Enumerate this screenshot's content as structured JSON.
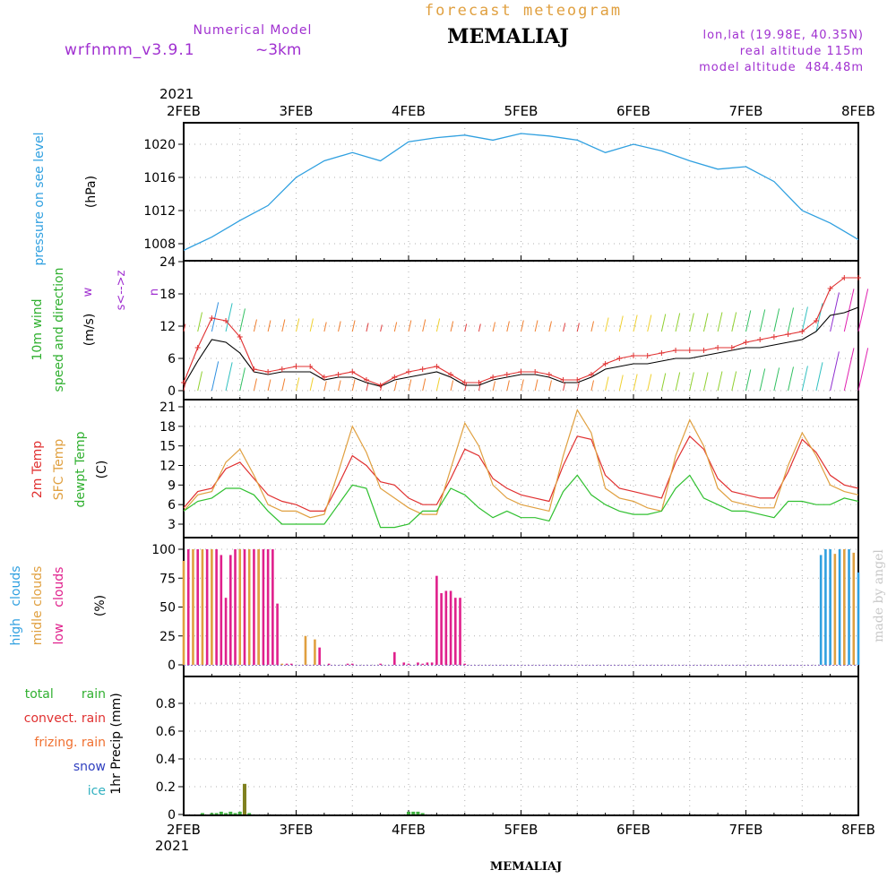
{
  "header": {
    "subtitle": "forecast meteogram",
    "station": "MEMALIAJ",
    "model_label": "Numerical Model",
    "model_name": "wrfnmm_v3.9.1",
    "resolution": "~3km",
    "lonlat": "lon,lat (19.98E, 40.35N)",
    "real_altitude": "real altitude 115m",
    "model_altitude": "model altitude  484.48m",
    "credit": "made by angel",
    "bottom_title": "MEMALIAJ",
    "colors": {
      "subtitle": "#e0a040",
      "model": "#a030d0",
      "station": "#000000",
      "credit": "#c0c0c0"
    }
  },
  "axis": {
    "year": "2021",
    "days": [
      "2FEB",
      "3FEB",
      "4FEB",
      "5FEB",
      "6FEB",
      "7FEB",
      "8FEB"
    ],
    "hours_range": [
      0,
      144
    ]
  },
  "panels": {
    "pressure": {
      "label": "pressure on see level",
      "unit": "(hPa)",
      "yticks": [
        "1008",
        "1012",
        "1016",
        "1020"
      ],
      "color": "#30a0e0"
    },
    "wind": {
      "label1": "10m wind",
      "label2": "speed and direction",
      "unit": "(m/s)",
      "dir_label": "w",
      "dir_arrows": "s<-->z",
      "dir_end": "n",
      "yticks": [
        "0",
        "6",
        "12",
        "18",
        "24"
      ]
    },
    "temp": {
      "label1": "2m Temp",
      "label2": "SFC Temp",
      "label3": "dewpt Temp",
      "unit": "(C)",
      "yticks": [
        "3",
        "6",
        "9",
        "12",
        "15",
        "18",
        "21"
      ]
    },
    "clouds": {
      "label_high": "high   clouds",
      "label_mid": "midle clouds",
      "label_low": "low    clouds",
      "unit": "(%)",
      "yticks": [
        "0",
        "25",
        "50",
        "75",
        "100"
      ]
    },
    "precip": {
      "labels": [
        "total       rain",
        "convect. rain",
        "frizing. rain",
        "snow",
        "ice"
      ],
      "unit": "1hr Precip (mm)",
      "yticks": [
        "0",
        "0.2",
        "0.4",
        "0.6",
        "0.8"
      ]
    }
  },
  "chart_data": [
    {
      "type": "line",
      "title": "pressure on see level",
      "ylabel": "(hPa)",
      "ylim": [
        1006.6,
        1022.2
      ],
      "grid": true,
      "x": [
        0,
        6,
        12,
        18,
        24,
        30,
        36,
        42,
        48,
        54,
        60,
        66,
        72,
        78,
        84,
        90,
        96,
        102,
        108,
        114,
        120,
        126,
        132,
        138,
        144
      ],
      "series": [
        {
          "values": [
            1007.2,
            1008.8,
            1010.8,
            1012.6,
            1016.0,
            1018.0,
            1019.0,
            1018.0,
            1020.3,
            1020.8,
            1021.1,
            1020.5,
            1021.3,
            1021.0,
            1020.5,
            1019.0,
            1020.0,
            1019.2,
            1018.0,
            1017.0,
            1017.3,
            1015.5,
            1012.0,
            1010.5,
            1008.5
          ]
        }
      ]
    },
    {
      "type": "line",
      "title": "10m wind speed and direction",
      "ylabel": "(m/s)",
      "ylim": [
        -1,
        25
      ],
      "grid": true,
      "x": [
        0,
        3,
        6,
        9,
        12,
        15,
        18,
        21,
        24,
        27,
        30,
        33,
        36,
        39,
        42,
        45,
        48,
        51,
        54,
        57,
        60,
        63,
        66,
        69,
        72,
        75,
        78,
        81,
        84,
        87,
        90,
        93,
        96,
        99,
        102,
        105,
        108,
        111,
        114,
        117,
        120,
        123,
        126,
        129,
        132,
        135,
        138,
        141,
        144
      ],
      "series": [
        {
          "values": [
            1.5,
            8,
            13.5,
            13,
            10,
            4,
            3.5,
            4,
            4.5,
            4.5,
            2.5,
            3,
            3.5,
            2,
            1,
            2.5,
            3.5,
            4,
            4.5,
            3,
            1.5,
            1.5,
            2.5,
            3,
            3.5,
            3.5,
            3,
            2,
            2,
            3,
            5,
            6,
            6.5,
            6.5,
            7,
            7.5,
            7.5,
            7.5,
            8,
            8,
            9,
            9.5,
            10,
            10.5,
            11,
            13,
            19,
            21,
            21
          ]
        },
        {
          "values": [
            1,
            5.5,
            9.5,
            9,
            7,
            3.5,
            3,
            3.5,
            3.5,
            3.5,
            2,
            2.5,
            2.5,
            1.5,
            0.8,
            2,
            2.5,
            3,
            3.5,
            2.5,
            1,
            1,
            2,
            2.5,
            3,
            3,
            2.5,
            1.5,
            1.5,
            2.5,
            4,
            4.5,
            5,
            5,
            5.5,
            6,
            6,
            6.5,
            7,
            7.5,
            8,
            8,
            8.5,
            9,
            9.5,
            11,
            14,
            14.5,
            15.5
          ]
        }
      ]
    },
    {
      "type": "line",
      "title": "2m Temp / SFC Temp / dewpt Temp",
      "ylabel": "(C)",
      "ylim": [
        1.5,
        21.5
      ],
      "grid": true,
      "x": [
        0,
        3,
        6,
        9,
        12,
        15,
        18,
        21,
        24,
        27,
        30,
        33,
        36,
        39,
        42,
        45,
        48,
        51,
        54,
        57,
        60,
        63,
        66,
        69,
        72,
        75,
        78,
        81,
        84,
        87,
        90,
        93,
        96,
        99,
        102,
        105,
        108,
        111,
        114,
        117,
        120,
        123,
        126,
        129,
        132,
        135,
        138,
        141,
        144
      ],
      "series": [
        {
          "values": [
            5.5,
            8,
            8.5,
            11.5,
            12.5,
            10,
            7.5,
            6.5,
            6,
            5,
            5,
            9,
            13.5,
            12,
            9.5,
            9,
            7,
            6,
            6,
            10,
            14.5,
            13.5,
            10,
            8.5,
            7.5,
            7,
            6.5,
            12,
            16.5,
            16,
            10.5,
            8.5,
            8,
            7.5,
            7,
            12.5,
            16.5,
            14.5,
            10,
            8,
            7.5,
            7,
            7,
            11,
            16,
            14,
            10.5,
            9,
            8.5
          ]
        },
        {
          "values": [
            5,
            7.5,
            8,
            12.5,
            14.5,
            10.5,
            6,
            5,
            5,
            4,
            4.5,
            11,
            18,
            14,
            8.5,
            7,
            5.5,
            4.5,
            4.5,
            11.5,
            18.5,
            15,
            9,
            7,
            6,
            5.5,
            5,
            13.5,
            20.5,
            17,
            8.5,
            7,
            6.5,
            5.5,
            5,
            13.5,
            19,
            15,
            8.5,
            6.5,
            6,
            5.5,
            5.5,
            12,
            17,
            13.5,
            9,
            8,
            7.5
          ]
        },
        {
          "values": [
            5,
            6.5,
            7,
            8.5,
            8.5,
            7.5,
            5,
            3,
            3,
            3,
            3,
            6,
            9,
            8.5,
            2.5,
            2.5,
            3,
            5,
            5,
            8.5,
            7.5,
            5.5,
            4,
            5,
            4,
            4,
            3.5,
            8,
            10.5,
            7.5,
            6,
            5,
            4.5,
            4.5,
            5,
            8.5,
            10.5,
            7,
            6,
            5,
            5,
            4.5,
            4,
            6.5,
            6.5,
            6,
            6,
            7,
            6.5
          ]
        }
      ]
    },
    {
      "type": "bar",
      "title": "high clouds / midle clouds / low clouds",
      "ylabel": "(%)",
      "ylim": [
        -5,
        104
      ],
      "grid": true,
      "series": [
        {
          "name": "low clouds",
          "x": [
            1,
            3,
            5,
            7,
            8,
            9,
            10,
            11,
            13,
            15,
            16,
            17,
            18,
            19,
            20,
            22,
            23,
            27,
            29,
            31,
            35,
            36,
            42,
            45,
            47,
            48,
            50,
            51,
            52,
            53,
            54,
            55,
            56,
            57,
            58,
            59,
            60
          ],
          "values": [
            100,
            100,
            100,
            100,
            95,
            58,
            95,
            100,
            100,
            100,
            100,
            100,
            100,
            100,
            53,
            1,
            1,
            0,
            15,
            1,
            1,
            1,
            1,
            11,
            2,
            1,
            2,
            1,
            2,
            2,
            77,
            62,
            64,
            64,
            58,
            58,
            1
          ]
        },
        {
          "name": "midle clouds",
          "x": [
            0,
            2,
            4,
            6,
            12,
            14,
            16,
            21,
            26,
            28,
            139,
            141,
            143
          ],
          "values": [
            90,
            100,
            100,
            100,
            100,
            100,
            100,
            1,
            25,
            22,
            96,
            100,
            97
          ]
        },
        {
          "name": "high clouds",
          "x": [
            136,
            137,
            138,
            140,
            142,
            144
          ],
          "values": [
            95,
            100,
            100,
            100,
            100,
            80
          ]
        }
      ]
    },
    {
      "type": "bar",
      "title": "1hr Precip",
      "ylabel": "1hr Precip (mm)",
      "ylim": [
        -0.01,
        1.0
      ],
      "grid": true,
      "series": [
        {
          "name": "total rain",
          "x": [
            4,
            6,
            7,
            8,
            9,
            10,
            11,
            12,
            13,
            14,
            48,
            49,
            50,
            51
          ],
          "values": [
            0.01,
            0.01,
            0.01,
            0.02,
            0.01,
            0.02,
            0.01,
            0.02,
            0.22,
            0.01,
            0.02,
            0.02,
            0.02,
            0.01
          ]
        },
        {
          "name": "convect. rain",
          "x": [
            13
          ],
          "values": [
            0.22
          ]
        }
      ]
    }
  ]
}
